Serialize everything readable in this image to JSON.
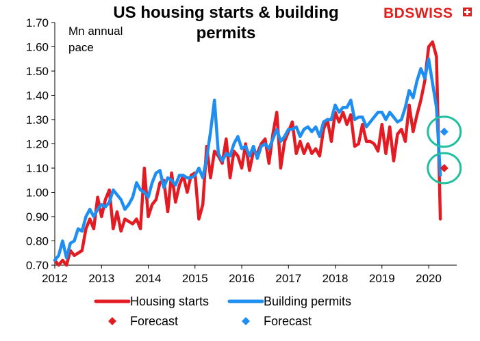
{
  "chart_data": {
    "type": "line",
    "title": "US housing starts & building permits",
    "ylabel": "Mn annual pace",
    "xlabel": "",
    "ylim": [
      0.7,
      1.7
    ],
    "yticks": [
      "0.70",
      "0.80",
      "0.90",
      "1.00",
      "1.10",
      "1.20",
      "1.30",
      "1.40",
      "1.50",
      "1.60",
      "1.70"
    ],
    "xlim": [
      2012,
      2020.6
    ],
    "xticks": [
      "2012",
      "2013",
      "2014",
      "2015",
      "2016",
      "2017",
      "2018",
      "2019",
      "2020"
    ],
    "grid": false,
    "legend_position": "bottom",
    "series": [
      {
        "name": "Housing starts",
        "color": "#e31b23",
        "style": "line",
        "x": [
          2012.0,
          2012.083,
          2012.167,
          2012.25,
          2012.333,
          2012.417,
          2012.5,
          2012.583,
          2012.667,
          2012.75,
          2012.833,
          2012.917,
          2013.0,
          2013.083,
          2013.167,
          2013.25,
          2013.333,
          2013.417,
          2013.5,
          2013.583,
          2013.667,
          2013.75,
          2013.833,
          2013.917,
          2014.0,
          2014.083,
          2014.167,
          2014.25,
          2014.333,
          2014.417,
          2014.5,
          2014.583,
          2014.667,
          2014.75,
          2014.833,
          2014.917,
          2015.0,
          2015.083,
          2015.167,
          2015.25,
          2015.333,
          2015.417,
          2015.5,
          2015.583,
          2015.667,
          2015.75,
          2015.833,
          2015.917,
          2016.0,
          2016.083,
          2016.167,
          2016.25,
          2016.333,
          2016.417,
          2016.5,
          2016.583,
          2016.667,
          2016.75,
          2016.833,
          2016.917,
          2017.0,
          2017.083,
          2017.167,
          2017.25,
          2017.333,
          2017.417,
          2017.5,
          2017.583,
          2017.667,
          2017.75,
          2017.833,
          2017.917,
          2018.0,
          2018.083,
          2018.167,
          2018.25,
          2018.333,
          2018.417,
          2018.5,
          2018.583,
          2018.667,
          2018.75,
          2018.833,
          2018.917,
          2019.0,
          2019.083,
          2019.167,
          2019.25,
          2019.333,
          2019.417,
          2019.5,
          2019.583,
          2019.667,
          2019.75,
          2019.833,
          2019.917,
          2020.0,
          2020.083,
          2020.167,
          2020.25
        ],
        "values": [
          0.72,
          0.7,
          0.72,
          0.7,
          0.76,
          0.74,
          0.75,
          0.76,
          0.85,
          0.89,
          0.85,
          0.98,
          0.9,
          0.97,
          1.01,
          0.85,
          0.92,
          0.84,
          0.89,
          0.88,
          0.87,
          0.89,
          0.85,
          1.1,
          0.9,
          0.95,
          0.97,
          1.04,
          1.05,
          0.92,
          1.08,
          0.96,
          1.03,
          1.07,
          1.0,
          1.07,
          1.08,
          0.89,
          0.95,
          1.19,
          1.06,
          1.17,
          1.15,
          1.12,
          1.22,
          1.06,
          1.17,
          1.15,
          1.1,
          1.2,
          1.09,
          1.17,
          1.16,
          1.2,
          1.22,
          1.12,
          1.24,
          1.33,
          1.1,
          1.21,
          1.25,
          1.29,
          1.16,
          1.21,
          1.16,
          1.2,
          1.16,
          1.18,
          1.15,
          1.26,
          1.3,
          1.21,
          1.33,
          1.29,
          1.33,
          1.28,
          1.32,
          1.19,
          1.2,
          1.28,
          1.21,
          1.21,
          1.2,
          1.17,
          1.28,
          1.16,
          1.27,
          1.13,
          1.24,
          1.26,
          1.21,
          1.36,
          1.25,
          1.32,
          1.38,
          1.46,
          1.6,
          1.62,
          1.56,
          0.89
        ]
      },
      {
        "name": "Building permits",
        "color": "#1e8ef0",
        "style": "line",
        "x": [
          2012.0,
          2012.083,
          2012.167,
          2012.25,
          2012.333,
          2012.417,
          2012.5,
          2012.583,
          2012.667,
          2012.75,
          2012.833,
          2012.917,
          2013.0,
          2013.083,
          2013.167,
          2013.25,
          2013.333,
          2013.417,
          2013.5,
          2013.583,
          2013.667,
          2013.75,
          2013.833,
          2013.917,
          2014.0,
          2014.083,
          2014.167,
          2014.25,
          2014.333,
          2014.417,
          2014.5,
          2014.583,
          2014.667,
          2014.75,
          2014.833,
          2014.917,
          2015.0,
          2015.083,
          2015.167,
          2015.25,
          2015.333,
          2015.417,
          2015.5,
          2015.583,
          2015.667,
          2015.75,
          2015.833,
          2015.917,
          2016.0,
          2016.083,
          2016.167,
          2016.25,
          2016.333,
          2016.417,
          2016.5,
          2016.583,
          2016.667,
          2016.75,
          2016.833,
          2016.917,
          2017.0,
          2017.083,
          2017.167,
          2017.25,
          2017.333,
          2017.417,
          2017.5,
          2017.583,
          2017.667,
          2017.75,
          2017.833,
          2017.917,
          2018.0,
          2018.083,
          2018.167,
          2018.25,
          2018.333,
          2018.417,
          2018.5,
          2018.583,
          2018.667,
          2018.75,
          2018.833,
          2018.917,
          2019.0,
          2019.083,
          2019.167,
          2019.25,
          2019.333,
          2019.417,
          2019.5,
          2019.583,
          2019.667,
          2019.75,
          2019.833,
          2019.917,
          2020.0,
          2020.083,
          2020.167,
          2020.25
        ],
        "values": [
          0.72,
          0.74,
          0.8,
          0.73,
          0.79,
          0.8,
          0.85,
          0.84,
          0.9,
          0.93,
          0.9,
          0.93,
          0.95,
          0.94,
          0.96,
          1.01,
          0.99,
          0.97,
          0.93,
          0.95,
          0.98,
          1.04,
          1.01,
          1.0,
          0.98,
          1.04,
          1.08,
          1.09,
          1.02,
          1.06,
          1.05,
          1.03,
          1.07,
          1.07,
          1.06,
          1.06,
          1.07,
          1.1,
          1.06,
          1.14,
          1.25,
          1.38,
          1.16,
          1.13,
          1.16,
          1.15,
          1.2,
          1.23,
          1.18,
          1.19,
          1.15,
          1.19,
          1.14,
          1.19,
          1.2,
          1.18,
          1.22,
          1.26,
          1.21,
          1.23,
          1.26,
          1.26,
          1.27,
          1.23,
          1.26,
          1.27,
          1.25,
          1.27,
          1.23,
          1.29,
          1.3,
          1.3,
          1.36,
          1.33,
          1.35,
          1.35,
          1.38,
          1.3,
          1.31,
          1.31,
          1.27,
          1.29,
          1.31,
          1.33,
          1.33,
          1.3,
          1.33,
          1.31,
          1.29,
          1.3,
          1.35,
          1.42,
          1.39,
          1.46,
          1.51,
          1.47,
          1.55,
          1.45,
          1.35,
          1.07
        ]
      },
      {
        "name": "Forecast",
        "color": "#e31b23",
        "style": "marker",
        "x": [
          2020.333
        ],
        "values": [
          1.1
        ]
      },
      {
        "name": "Forecast",
        "color": "#1e8ef0",
        "style": "marker",
        "x": [
          2020.333
        ],
        "values": [
          1.25
        ]
      }
    ],
    "highlights": [
      {
        "x": 2020.333,
        "y": 1.25,
        "color": "#1fbf9f"
      },
      {
        "x": 2020.333,
        "y": 1.1,
        "color": "#1fbf9f"
      }
    ]
  },
  "brand": {
    "part1": "BD",
    "part2": "SWISS"
  }
}
